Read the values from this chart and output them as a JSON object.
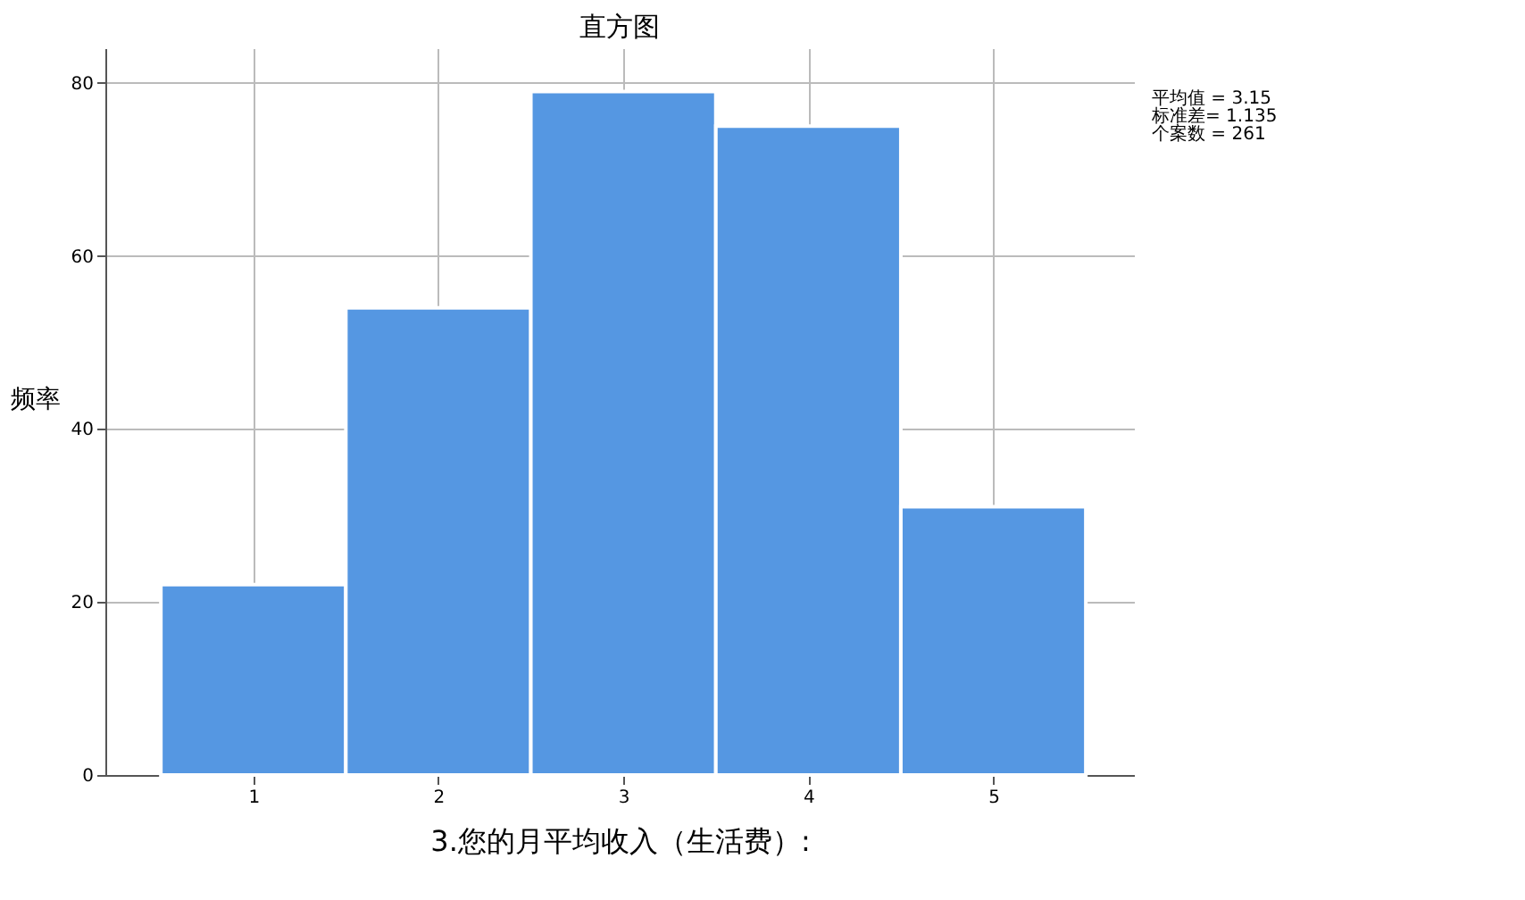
{
  "chart_data": {
    "type": "histogram",
    "title": "直方图",
    "xlabel": "3.您的月平均收入（生活费）:",
    "ylabel": "频率",
    "bins": [
      0.5,
      1.5,
      2.5,
      3.5,
      4.5,
      5.5
    ],
    "values": [
      22,
      54,
      79,
      75,
      31
    ],
    "color": "#5597e2",
    "xlim": [
      0.2,
      5.76
    ],
    "xticks": [
      1,
      2,
      3,
      4,
      5
    ],
    "ylim": [
      0,
      84
    ],
    "yticks": [
      0,
      20,
      40,
      60,
      80
    ],
    "grid": true,
    "annotations": [
      "平均值 = 3.15",
      "标准差= 1.135",
      "个案数 = 261"
    ]
  }
}
